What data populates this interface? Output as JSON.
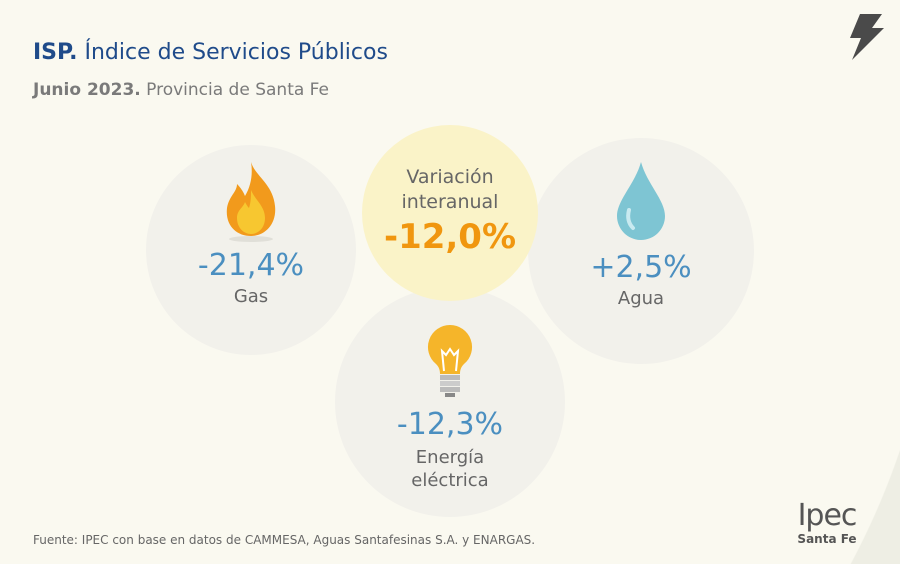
{
  "header": {
    "title_bold": "ISP.",
    "title": " Índice de Servicios Públicos",
    "subtitle_bold": "Junio 2023.",
    "subtitle": " Provincia de Santa Fe"
  },
  "total": {
    "label_line1": "Variación",
    "label_line2": "interanual",
    "value": "-12,0%"
  },
  "items": [
    {
      "icon": "flame-icon",
      "value": "-21,4%",
      "label": "Gas"
    },
    {
      "icon": "water-drop-icon",
      "value": "+2,5%",
      "label": "Agua"
    },
    {
      "icon": "light-bulb-icon",
      "value": "-12,3%",
      "label_line1": "Energía",
      "label_line2": "eléctrica"
    }
  ],
  "source": "Fuente: IPEC con base en datos de CAMMESA, Aguas Santafesinas S.A. y ENARGAS.",
  "logo": {
    "name": "Ipec",
    "region": "Santa Fe"
  },
  "colors": {
    "title": "#1f4b8a",
    "value": "#4b8fc0",
    "total": "#f0960f",
    "highlight": "#faf3c8"
  }
}
